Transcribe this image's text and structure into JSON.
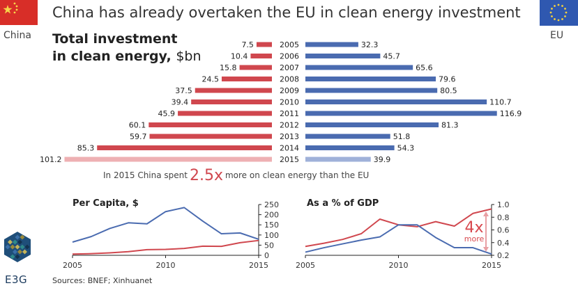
{
  "title": "China has already overtaken the EU in clean energy investment",
  "flags": {
    "china_label": "China",
    "eu_label": "EU"
  },
  "main_chart": {
    "subtitle_bold_line1": "Total investment",
    "subtitle_bold_line2": "in clean energy,",
    "subtitle_unit": "$bn"
  },
  "annotation": {
    "before": "In 2015 China spent",
    "emphasis": "2.5x",
    "after": "more on clean energy than the EU"
  },
  "per_capita": {
    "title": "Per Capita, $"
  },
  "gdp": {
    "title": "As a % of GDP",
    "callout_big": "4x",
    "callout_small": "more"
  },
  "sources": "Sources: BNEF; Xinhuanet",
  "logo_text": "E3G",
  "colors": {
    "china": "#d0474e",
    "eu": "#4a6bb0",
    "china_light": "#eeb0b3",
    "eu_light": "#9fb1d9"
  },
  "chart_data": [
    {
      "type": "bar",
      "categories": [
        "2005",
        "2006",
        "2007",
        "2008",
        "2009",
        "2010",
        "2011",
        "2012",
        "2013",
        "2014",
        "2015"
      ],
      "series": [
        {
          "name": "China",
          "values": [
            7.5,
            10.4,
            15.8,
            24.5,
            37.5,
            39.4,
            45.9,
            60.1,
            59.7,
            85.3,
            101.2
          ]
        },
        {
          "name": "EU",
          "values": [
            32.3,
            45.7,
            65.6,
            79.6,
            80.5,
            110.7,
            116.9,
            81.3,
            51.8,
            54.3,
            39.9
          ]
        }
      ],
      "title": "Total investment in clean energy, $bn"
    },
    {
      "type": "line",
      "title": "Per Capita, $",
      "x": [
        2005,
        2006,
        2007,
        2008,
        2009,
        2010,
        2011,
        2012,
        2013,
        2014,
        2015
      ],
      "series": [
        {
          "name": "China",
          "values": [
            6,
            8,
            12,
            18,
            28,
            29,
            34,
            45,
            44,
            62,
            73
          ]
        },
        {
          "name": "EU",
          "values": [
            65,
            92,
            132,
            160,
            155,
            215,
            235,
            168,
            106,
            110,
            79
          ]
        }
      ],
      "ylim": [
        0,
        250
      ],
      "yticks": [
        0,
        50,
        100,
        150,
        200,
        250
      ],
      "xticks": [
        2005,
        2010,
        2015
      ]
    },
    {
      "type": "line",
      "title": "As a % of GDP",
      "x": [
        2005,
        2006,
        2007,
        2008,
        2009,
        2010,
        2011,
        2012,
        2013,
        2014,
        2015
      ],
      "series": [
        {
          "name": "China",
          "values": [
            0.34,
            0.39,
            0.45,
            0.54,
            0.77,
            0.68,
            0.65,
            0.73,
            0.66,
            0.86,
            0.93
          ]
        },
        {
          "name": "EU",
          "values": [
            0.25,
            0.32,
            0.38,
            0.44,
            0.49,
            0.68,
            0.68,
            0.48,
            0.32,
            0.32,
            0.22
          ]
        }
      ],
      "ylim": [
        0.2,
        1.0
      ],
      "yticks": [
        0.2,
        0.4,
        0.6,
        0.8,
        1.0
      ],
      "xticks": [
        2005,
        2010,
        2015
      ]
    }
  ]
}
